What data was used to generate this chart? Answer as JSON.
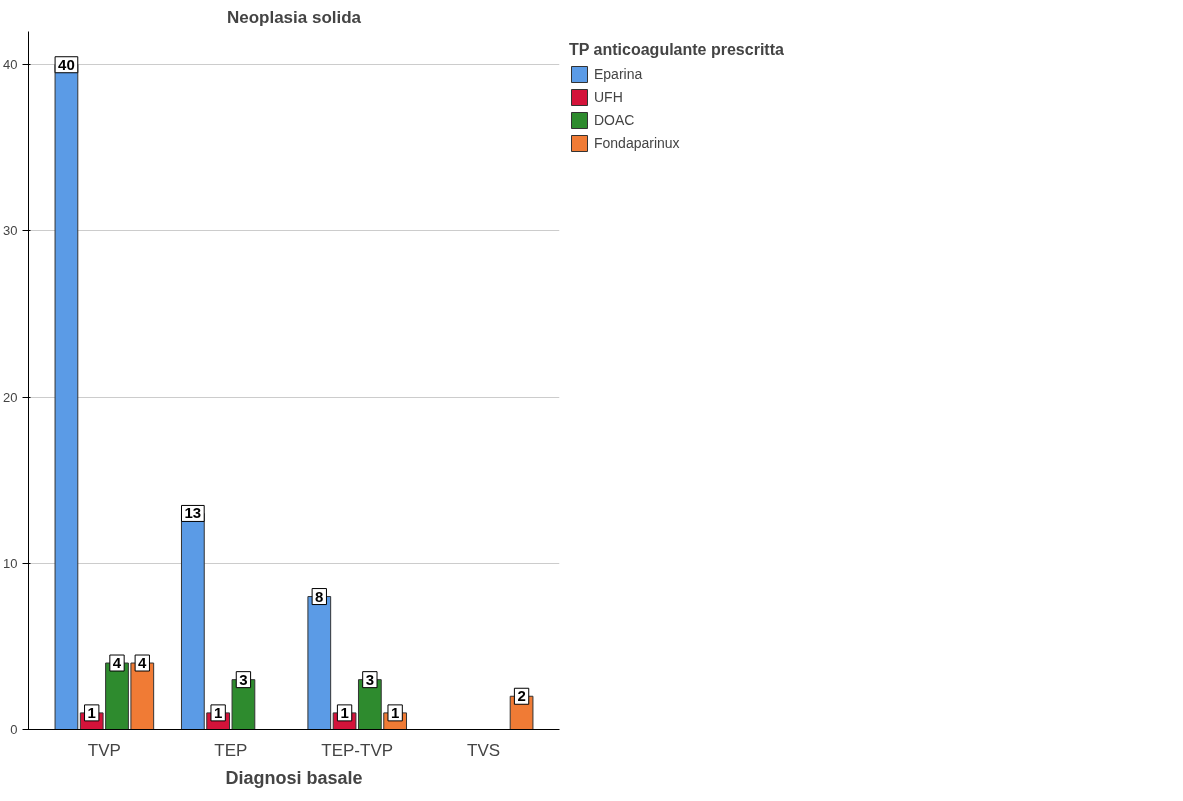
{
  "chart_data": {
    "type": "bar",
    "title": "Neoplasia solida",
    "xlabel": "Diagnosi basale",
    "legend_title": "TP anticoagulante prescritta",
    "categories": [
      "TVP",
      "TEP",
      "TEP-TVP",
      "TVS"
    ],
    "series": [
      {
        "name": "Eparina",
        "color": "#5b9be6",
        "values": [
          40,
          13,
          8,
          null
        ]
      },
      {
        "name": "UFH",
        "color": "#d4133a",
        "values": [
          1,
          1,
          1,
          null
        ]
      },
      {
        "name": "DOAC",
        "color": "#2e8b2e",
        "values": [
          4,
          3,
          3,
          null
        ]
      },
      {
        "name": "Fondaparinux",
        "color": "#f07b35",
        "values": [
          4,
          null,
          1,
          2
        ]
      }
    ],
    "ylim": [
      0,
      42
    ],
    "yticks": [
      0,
      10,
      20,
      30,
      40
    ],
    "grid": "y",
    "legend": "right",
    "data_labels": true
  }
}
